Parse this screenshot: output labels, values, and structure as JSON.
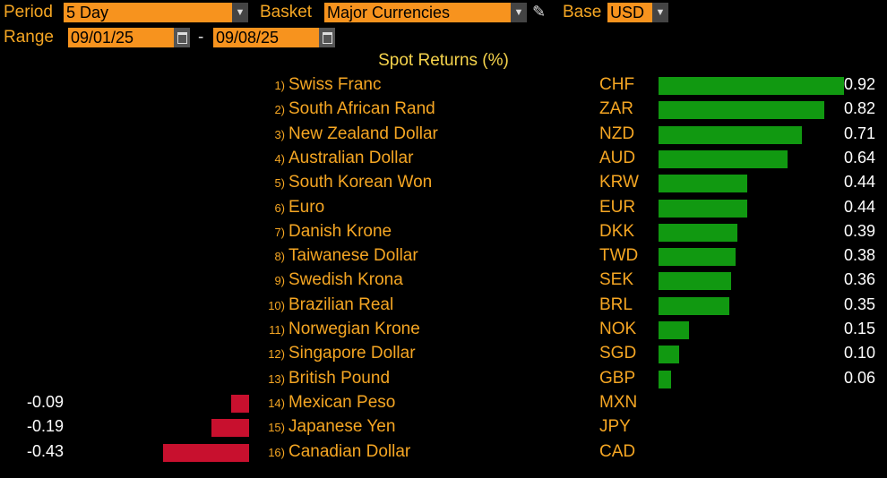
{
  "controls": {
    "period_label": "Period",
    "period_value": "5 Day",
    "basket_label": "Basket",
    "basket_value": "Major Currencies",
    "base_label": "Base",
    "base_value": "USD",
    "range_label": "Range",
    "range_start": "09/01/25",
    "range_sep": "-",
    "range_end": "09/08/25",
    "edit_icon": "pencil-icon",
    "dropdown_icon": "dropdown-arrow-icon",
    "calendar_icon": "calendar-icon"
  },
  "chart_title": "Spot Returns (%)",
  "colors": {
    "positive": "#119911",
    "negative": "#c8102e",
    "text": "#f5a623",
    "field": "#f7931e"
  },
  "chart_data": {
    "type": "bar",
    "title": "Spot Returns (%)",
    "ranks": [
      "1)",
      "2)",
      "3)",
      "4)",
      "5)",
      "6)",
      "7)",
      "8)",
      "9)",
      "10)",
      "11)",
      "12)",
      "13)",
      "14)",
      "15)",
      "16)"
    ],
    "categories": [
      "Swiss Franc",
      "South African Rand",
      "New Zealand Dollar",
      "Australian Dollar",
      "South Korean Won",
      "Euro",
      "Danish Krone",
      "Taiwanese Dollar",
      "Swedish Krona",
      "Brazilian Real",
      "Norwegian Krone",
      "Singapore Dollar",
      "British Pound",
      "Mexican Peso",
      "Japanese Yen",
      "Canadian Dollar"
    ],
    "codes": [
      "CHF",
      "ZAR",
      "NZD",
      "AUD",
      "KRW",
      "EUR",
      "DKK",
      "TWD",
      "SEK",
      "BRL",
      "NOK",
      "SGD",
      "GBP",
      "MXN",
      "JPY",
      "CAD"
    ],
    "values": [
      0.92,
      0.82,
      0.71,
      0.64,
      0.44,
      0.44,
      0.39,
      0.38,
      0.36,
      0.35,
      0.15,
      0.1,
      0.06,
      -0.09,
      -0.19,
      -0.43
    ],
    "value_labels": [
      "0.92",
      "0.82",
      "0.71",
      "0.64",
      "0.44",
      "0.44",
      "0.39",
      "0.38",
      "0.36",
      "0.35",
      "0.15",
      "0.10",
      "0.06",
      "-0.09",
      "-0.19",
      "-0.43"
    ]
  }
}
